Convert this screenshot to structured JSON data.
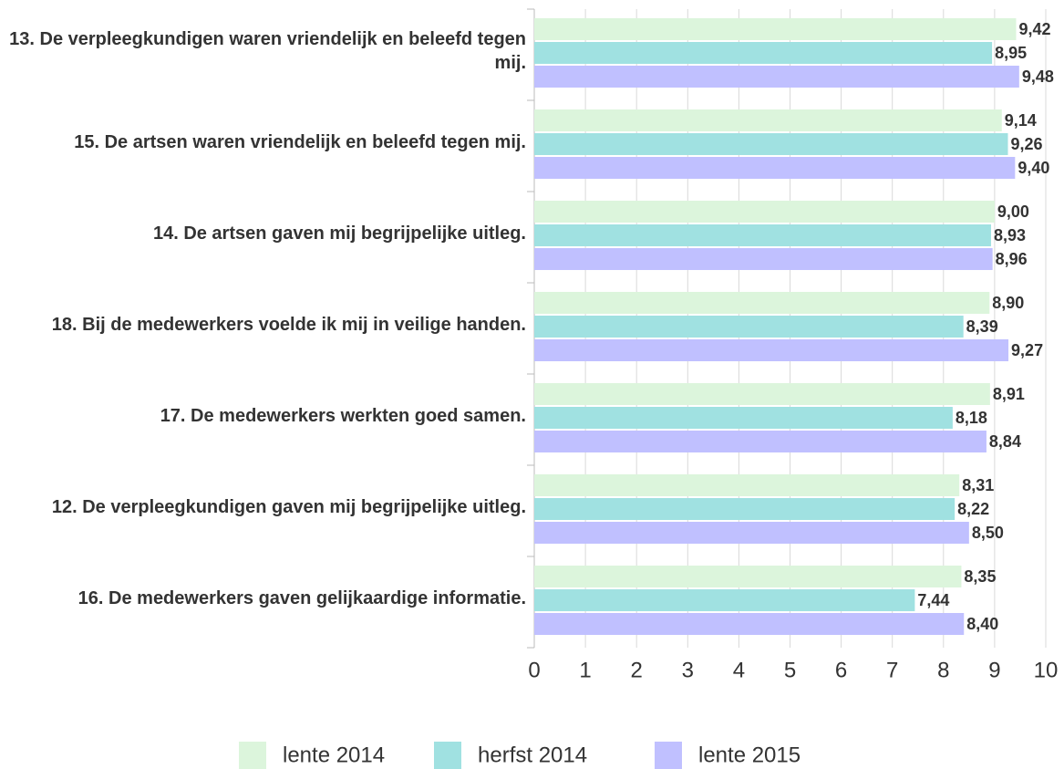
{
  "chart_data": {
    "type": "hbar",
    "categories": [
      "13. De verpleegkundigen waren vriendelijk en beleefd tegen mij.",
      "15. De artsen waren vriendelijk en beleefd tegen mij.",
      "14. De artsen gaven mij begrijpelijke uitleg.",
      "18. Bij de medewerkers voelde ik mij in veilige handen.",
      "17. De medewerkers werkten goed samen.",
      "12. De verpleegkundigen gaven mij begrijpelijke uitleg.",
      "16. De medewerkers gaven gelijkaardige informatie."
    ],
    "series": [
      {
        "name": "lente 2014",
        "color": "#dcf5dc",
        "values": [
          9.42,
          9.14,
          9.0,
          8.9,
          8.91,
          8.31,
          8.35
        ],
        "value_labels": [
          "9,42",
          "9,14",
          "9,00",
          "8,90",
          "8,91",
          "8,31",
          "8,35"
        ]
      },
      {
        "name": "herfst 2014",
        "color": "#a0e1e1",
        "values": [
          8.95,
          9.26,
          8.93,
          8.39,
          8.18,
          8.22,
          7.44
        ],
        "value_labels": [
          "8,95",
          "9,26",
          "8,93",
          "8,39",
          "8,18",
          "8,22",
          "7,44"
        ]
      },
      {
        "name": "lente 2015",
        "color": "#c0c0ff",
        "values": [
          9.48,
          9.4,
          8.96,
          9.27,
          8.84,
          8.5,
          8.4
        ],
        "value_labels": [
          "9,48",
          "9,40",
          "8,96",
          "9,27",
          "8,84",
          "8,50",
          "8,40"
        ]
      }
    ],
    "xlim": [
      0,
      10
    ],
    "xticks": [
      0,
      1,
      2,
      3,
      4,
      5,
      6,
      7,
      8,
      9,
      10
    ],
    "grid": true,
    "legend": "bottom"
  }
}
